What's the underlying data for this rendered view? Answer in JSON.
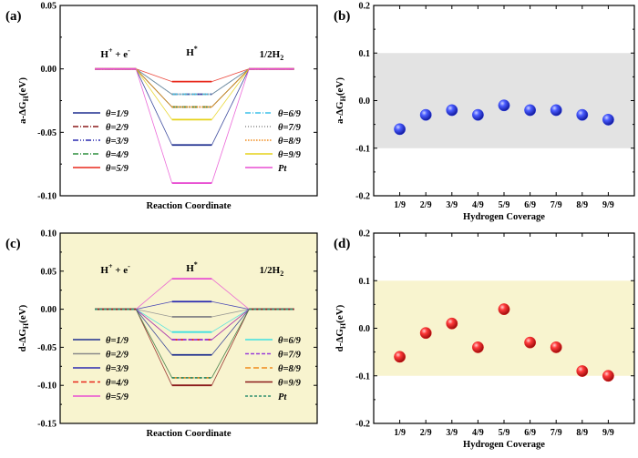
{
  "chart_data": [
    {
      "id": "a",
      "panel_label": "(a)",
      "type": "line",
      "kind": "energy-diagram",
      "ylabel": "a-ΔG",
      "ylabel_sub": "H",
      "ylabel_unit": "(eV)",
      "xlabel": "Reaction Coordinate",
      "ylim": [
        -0.1,
        0.05
      ],
      "yticks": [
        0.05,
        0.0,
        -0.05,
        -0.1
      ],
      "ytick_labels": [
        "0.05",
        "0.00",
        "-0.05",
        "-0.10"
      ],
      "stage_labels": [
        {
          "base": "H",
          "sup": "+",
          "mid": " + e",
          "sup2": "-"
        },
        {
          "base": "H",
          "sup": "*",
          "mid": "",
          "sup2": ""
        },
        {
          "base": "1/2H",
          "sup": "",
          "sub": "2",
          "mid": "",
          "sup2": ""
        }
      ],
      "series": [
        {
          "name": "θ=1/9",
          "values": [
            0,
            -0.06,
            0
          ],
          "color": "#1f2f8f",
          "dash": ""
        },
        {
          "name": "θ=2/9",
          "values": [
            0,
            -0.03,
            0
          ],
          "color": "#8b1a1a",
          "dash": "6,2,1,2"
        },
        {
          "name": "θ=3/9",
          "values": [
            0,
            -0.02,
            0
          ],
          "color": "#2a2ab0",
          "dash": "6,2,1,2,1,2"
        },
        {
          "name": "θ=4/9",
          "values": [
            0,
            -0.03,
            0
          ],
          "color": "#2f8f3f",
          "dash": "6,2,1,2"
        },
        {
          "name": "θ=5/9",
          "values": [
            0,
            -0.01,
            0
          ],
          "color": "#e8291c",
          "dash": ""
        },
        {
          "name": "θ=6/9",
          "values": [
            0,
            -0.02,
            0
          ],
          "color": "#3cc0e8",
          "dash": "6,2,1,2"
        },
        {
          "name": "θ=7/9",
          "values": [
            0,
            -0.02,
            0
          ],
          "color": "#8a8a8a",
          "dash": "1,2"
        },
        {
          "name": "θ=8/9",
          "values": [
            0,
            -0.03,
            0
          ],
          "color": "#f08a1a",
          "dash": "1.5,1.5"
        },
        {
          "name": "θ=9/9",
          "values": [
            0,
            -0.04,
            0
          ],
          "color": "#e6d21a",
          "dash": ""
        },
        {
          "name": "Pt",
          "values": [
            0,
            -0.09,
            0
          ],
          "color": "#e84fd2",
          "dash": ""
        }
      ],
      "legend_left": [
        "θ=1/9",
        "θ=2/9",
        "θ=3/9",
        "θ=4/9",
        "θ=5/9"
      ],
      "legend_right": [
        "θ=6/9",
        "θ=7/9",
        "θ=8/9",
        "θ=9/9",
        "Pt"
      ],
      "background": "#ffffff"
    },
    {
      "id": "b",
      "panel_label": "(b)",
      "type": "scatter",
      "ylabel": "a-ΔG",
      "ylabel_sub": "H",
      "ylabel_unit": "(eV)",
      "xlabel": "Hydrogen Coverage",
      "categories": [
        "1/9",
        "2/9",
        "3/9",
        "4/9",
        "5/9",
        "6/9",
        "7/9",
        "8/9",
        "9/9"
      ],
      "values": [
        -0.06,
        -0.03,
        -0.02,
        -0.03,
        -0.01,
        -0.02,
        -0.02,
        -0.03,
        -0.04
      ],
      "ylim": [
        -0.2,
        0.2
      ],
      "yticks": [
        0.2,
        0.1,
        0.0,
        -0.1,
        -0.2
      ],
      "ytick_labels": [
        "0.2",
        "0.1",
        "0.0",
        "-0.1",
        "-0.2"
      ],
      "band": [
        -0.1,
        0.1
      ],
      "band_color": "#e3e3e3",
      "point_color": "#2b3ff0"
    },
    {
      "id": "c",
      "panel_label": "(c)",
      "type": "line",
      "kind": "energy-diagram",
      "ylabel": "d-ΔG",
      "ylabel_sub": "H",
      "ylabel_unit": "(eV)",
      "xlabel": "Reaction Coordinate",
      "ylim": [
        -0.15,
        0.1
      ],
      "yticks": [
        0.1,
        0.05,
        0.0,
        -0.05,
        -0.1,
        -0.15
      ],
      "ytick_labels": [
        "0.10",
        "0.05",
        "0.00",
        "-0.05",
        "-0.10",
        "-0.15"
      ],
      "stage_labels": [
        {
          "base": "H",
          "sup": "+",
          "mid": " + e",
          "sup2": "-"
        },
        {
          "base": "H",
          "sup": "*",
          "mid": "",
          "sup2": ""
        },
        {
          "base": "1/2H",
          "sup": "",
          "sub": "2",
          "mid": "",
          "sup2": ""
        }
      ],
      "series": [
        {
          "name": "θ=1/9",
          "values": [
            0,
            -0.06,
            0
          ],
          "color": "#1f2f8f",
          "dash": ""
        },
        {
          "name": "θ=2/9",
          "values": [
            0,
            -0.01,
            0
          ],
          "color": "#8a8a8a",
          "dash": ""
        },
        {
          "name": "θ=3/9",
          "values": [
            0,
            0.01,
            0
          ],
          "color": "#2a2ab0",
          "dash": ""
        },
        {
          "name": "θ=4/9",
          "values": [
            0,
            -0.04,
            0
          ],
          "color": "#e8291c",
          "dash": "6,3"
        },
        {
          "name": "θ=5/9",
          "values": [
            0,
            0.04,
            0
          ],
          "color": "#e84fd2",
          "dash": ""
        },
        {
          "name": "θ=6/9",
          "values": [
            0,
            -0.03,
            0
          ],
          "color": "#3fe0e0",
          "dash": ""
        },
        {
          "name": "θ=7/9",
          "values": [
            0,
            -0.04,
            0
          ],
          "color": "#9a3fd8",
          "dash": "4,2"
        },
        {
          "name": "θ=8/9",
          "values": [
            0,
            -0.09,
            0
          ],
          "color": "#f08a1a",
          "dash": "6,3"
        },
        {
          "name": "θ=9/9",
          "values": [
            0,
            -0.1,
            0
          ],
          "color": "#8b1a1a",
          "dash": ""
        },
        {
          "name": "Pt",
          "values": [
            0,
            -0.09,
            0
          ],
          "color": "#2f8f6f",
          "dash": "3,2"
        }
      ],
      "legend_left": [
        "θ=1/9",
        "θ=2/9",
        "θ=3/9",
        "θ=4/9",
        "θ=5/9"
      ],
      "legend_right": [
        "θ=6/9",
        "θ=7/9",
        "θ=8/9",
        "θ=9/9",
        "Pt"
      ],
      "background": "#f8f4cf"
    },
    {
      "id": "d",
      "panel_label": "(d)",
      "type": "scatter",
      "ylabel": "d-ΔG",
      "ylabel_sub": "H",
      "ylabel_unit": "(eV)",
      "xlabel": "Hydrogen Coverage",
      "categories": [
        "1/9",
        "2/9",
        "3/9",
        "4/9",
        "5/9",
        "6/9",
        "7/9",
        "8/9",
        "9/9"
      ],
      "values": [
        -0.06,
        -0.01,
        0.01,
        -0.04,
        0.04,
        -0.03,
        -0.04,
        -0.09,
        -0.1
      ],
      "ylim": [
        -0.2,
        0.2
      ],
      "yticks": [
        0.2,
        0.1,
        0.0,
        -0.1,
        -0.2
      ],
      "ytick_labels": [
        "0.2",
        "0.1",
        "0.0",
        "-0.1",
        "-0.2"
      ],
      "band": [
        -0.1,
        0.1
      ],
      "band_color": "#f8f4cf",
      "point_color": "#e81c1c"
    }
  ]
}
